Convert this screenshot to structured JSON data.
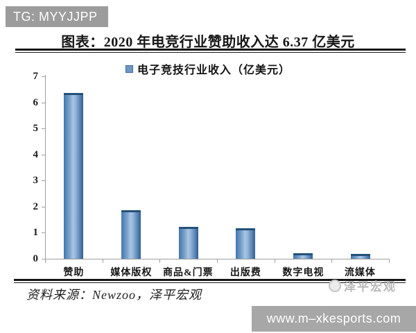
{
  "top_badge": {
    "text": "TG: MYYJJPP",
    "background": "#9c9c9c"
  },
  "header": {
    "title": "图表：2020 年电竞行业赞助收入达 6.37 亿美元"
  },
  "legend": {
    "label": "电子竞技行业收入（亿美元）",
    "swatch_color": "#6d97c4"
  },
  "chart_data": {
    "type": "bar",
    "title": "2020 年电竞行业赞助收入达 6.37 亿美元",
    "legend_entries": [
      "电子竞技行业收入（亿美元）"
    ],
    "legend_position": "top",
    "categories": [
      "赞助",
      "媒体版权",
      "商品&门票",
      "出版费",
      "数字电视",
      "流媒体"
    ],
    "values": [
      6.37,
      1.85,
      1.22,
      1.16,
      0.22,
      0.19
    ],
    "xlabel": "",
    "ylabel": "",
    "ylim": [
      0,
      7
    ],
    "ytick_step": 1,
    "grid": false,
    "bar_color": "#4f81bd",
    "axis_color": "#9e9e9e"
  },
  "source": {
    "text": "资料来源：Newzoo，泽平宏观"
  },
  "watermark": {
    "text": "泽平宏观"
  },
  "bottom_badge": {
    "text": "www.m–xkesports.com",
    "background": "#a7a7a7"
  },
  "colors": {
    "bar_accent": "#4f81bd",
    "axis_gray": "#9e9e9e",
    "badge_gray": "#9c9c9c",
    "url_badge_gray": "#a7a7a7",
    "watermark_gray": "#b8b8b8"
  }
}
